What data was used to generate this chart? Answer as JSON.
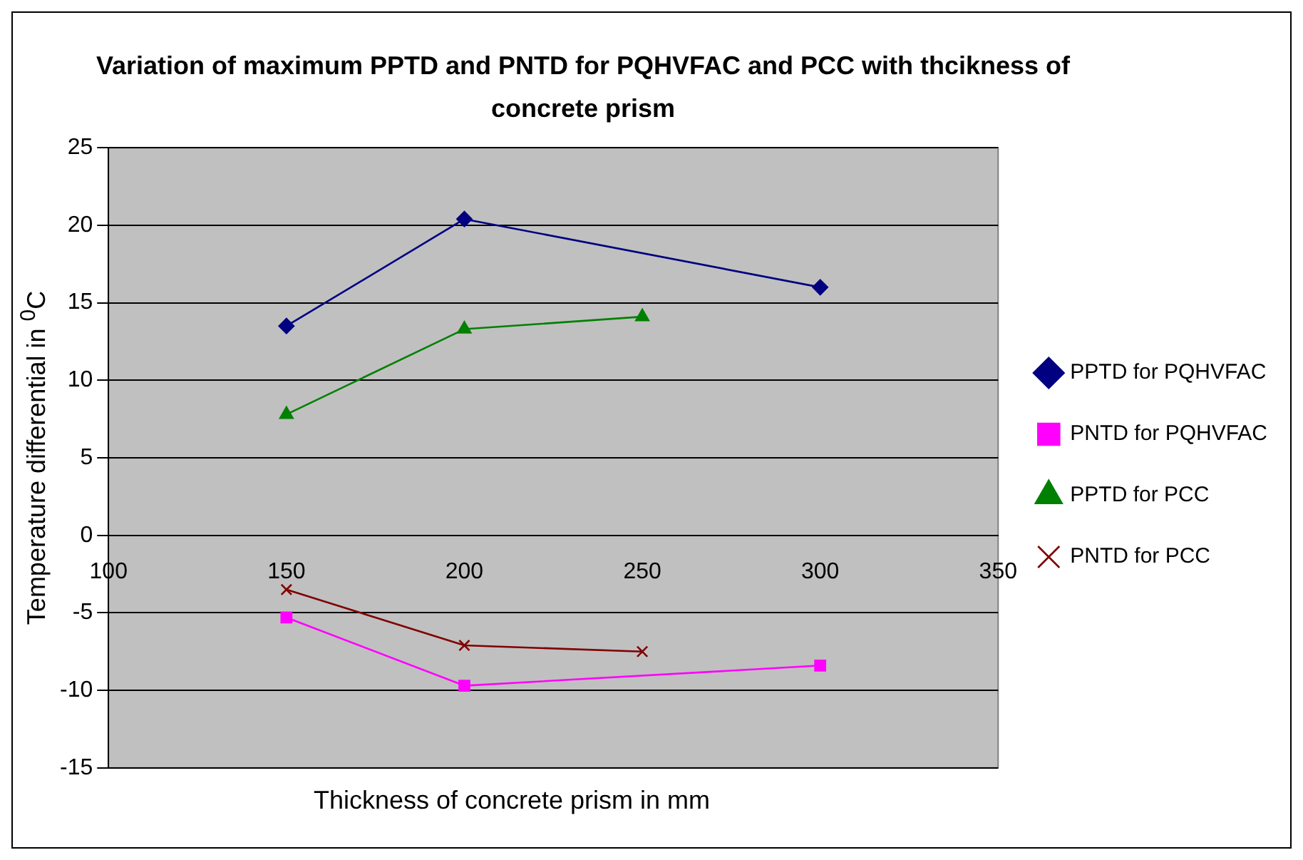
{
  "chart_data": {
    "type": "line",
    "title": "Variation of maximum PPTD and PNTD for PQHVFAC and PCC with thcikness of concrete prism",
    "xlabel": "Thickness of concrete prism in mm",
    "ylabel": "Temperature differential in $^{0}$C",
    "xlim": [
      100,
      350
    ],
    "xticks": [
      100,
      150,
      200,
      250,
      300,
      350
    ],
    "ylim": [
      -15,
      25
    ],
    "yticks": [
      -15,
      -10,
      -5,
      0,
      5,
      10,
      15,
      20,
      25
    ],
    "grid": "y",
    "legend": "right",
    "series": [
      {
        "name": "PPTD for PQHVFAC",
        "color": "#000080",
        "marker": "diamond",
        "x": [
          150,
          200,
          300
        ],
        "values": [
          13.5,
          20.4,
          16.0
        ]
      },
      {
        "name": "PNTD for PQHVFAC",
        "color": "#ff00ff",
        "marker": "square",
        "x": [
          150,
          200,
          300
        ],
        "values": [
          -5.3,
          -9.7,
          -8.4
        ]
      },
      {
        "name": "PPTD for PCC",
        "color": "#008000",
        "marker": "triangle",
        "x": [
          150,
          200,
          250
        ],
        "values": [
          7.8,
          13.3,
          14.1
        ]
      },
      {
        "name": "PNTD for PCC",
        "color": "#800000",
        "marker": "cross",
        "x": [
          150,
          200,
          250
        ],
        "values": [
          -3.5,
          -7.1,
          -7.5
        ]
      }
    ]
  }
}
